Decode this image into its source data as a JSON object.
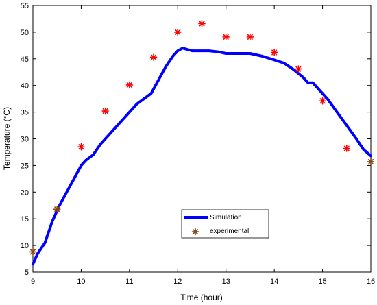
{
  "chart_data": {
    "type": "line",
    "title": "",
    "xlabel": "Time (hour)",
    "ylabel": "Temperature (°C)",
    "xlim": [
      9,
      16
    ],
    "ylim": [
      5,
      55
    ],
    "xticks": [
      "9",
      "10",
      "11",
      "12",
      "13",
      "14",
      "15",
      "16"
    ],
    "yticks": [
      "5",
      "10",
      "15",
      "20",
      "25",
      "30",
      "35",
      "40",
      "45",
      "50",
      "55"
    ],
    "grid": false,
    "legend_position": "center-bottom",
    "series": [
      {
        "name": "Simulation",
        "color": "#0000ff",
        "style": "line",
        "x": [
          9.0,
          9.1,
          9.25,
          9.4,
          9.55,
          9.7,
          9.85,
          10.0,
          10.1,
          10.25,
          10.4,
          10.55,
          10.7,
          10.85,
          11.0,
          11.15,
          11.3,
          11.45,
          11.6,
          11.75,
          11.9,
          12.0,
          12.1,
          12.3,
          12.5,
          12.65,
          12.85,
          13.0,
          13.25,
          13.5,
          13.75,
          14.0,
          14.2,
          14.4,
          14.6,
          14.7,
          14.8,
          14.95,
          15.1,
          15.3,
          15.5,
          15.7,
          15.85,
          16.0
        ],
        "y": [
          6.5,
          8.5,
          10.5,
          14.5,
          17.5,
          20.0,
          22.5,
          25.0,
          26.0,
          27.0,
          29.0,
          30.5,
          32.0,
          33.5,
          35.0,
          36.5,
          37.5,
          38.5,
          41.0,
          43.5,
          45.5,
          46.5,
          47.0,
          46.5,
          46.5,
          46.5,
          46.3,
          46.0,
          46.0,
          46.0,
          45.5,
          44.8,
          44.2,
          43.0,
          41.5,
          40.5,
          40.5,
          39.0,
          37.5,
          35.0,
          32.5,
          30.0,
          28.0,
          26.8
        ]
      },
      {
        "name": "experimental",
        "color": "#ff0000",
        "style": "marker",
        "x": [
          9.0,
          9.5,
          10.0,
          10.5,
          11.0,
          11.5,
          12.0,
          12.5,
          13.0,
          13.5,
          14.0,
          14.5,
          15.0,
          15.5,
          16.0
        ],
        "y": [
          8.8,
          16.8,
          28.5,
          35.2,
          40.1,
          45.3,
          50.0,
          51.6,
          49.1,
          49.1,
          46.2,
          43.1,
          37.1,
          28.2,
          25.7
        ]
      }
    ]
  }
}
